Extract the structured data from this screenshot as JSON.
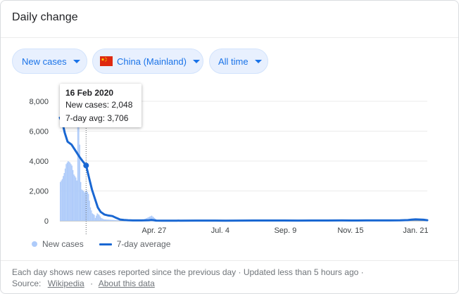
{
  "card": {
    "title": "Daily change"
  },
  "filters": {
    "metric": "New cases",
    "region": "China (Mainland)",
    "region_flag": "china-flag-icon",
    "period": "All time"
  },
  "tooltip": {
    "date": "16 Feb 2020",
    "new_cases": "New cases: 2,048",
    "avg": "7-day avg: 3,706"
  },
  "legend": {
    "bars": "New cases",
    "line": "7-day average"
  },
  "footer": {
    "note": "Each day shows new cases reported since the previous day · Updated less than 5 hours ago ·",
    "source_label": "Source:",
    "source_link": "Wikipedia",
    "about_link": "About this data"
  },
  "colors": {
    "accent": "#1a73e8",
    "line": "#1967d2",
    "bars": "#aecbfa",
    "chip_bg": "#e8f0fe"
  },
  "chart_data": {
    "type": "line",
    "ylim": [
      0,
      8000
    ],
    "y_ticks": [
      0,
      2000,
      4000,
      6000,
      8000
    ],
    "y_tick_labels": [
      "0",
      "2,000",
      "4,000",
      "6,000",
      "8,000"
    ],
    "x_tick_labels": [
      "Apr. 27",
      "Jul. 4",
      "Sep. 9",
      "Nov. 15",
      "Jan. 21"
    ],
    "x_tick_day_index": [
      97,
      165,
      232,
      299,
      366
    ],
    "day_count": 378,
    "grid": true,
    "legend_position": "bottom-left",
    "highlight": {
      "day_index": 27,
      "date": "16 Feb 2020",
      "new_cases": 2048,
      "avg": 3706
    },
    "series": [
      {
        "name": "7-day average",
        "kind": "line",
        "points": [
          [
            0,
            6900
          ],
          [
            3,
            6500
          ],
          [
            5,
            5900
          ],
          [
            8,
            5300
          ],
          [
            12,
            5100
          ],
          [
            16,
            4700
          ],
          [
            20,
            4300
          ],
          [
            24,
            3950
          ],
          [
            27,
            3706
          ],
          [
            30,
            2900
          ],
          [
            33,
            2100
          ],
          [
            36,
            1500
          ],
          [
            39,
            900
          ],
          [
            42,
            600
          ],
          [
            46,
            420
          ],
          [
            50,
            360
          ],
          [
            54,
            320
          ],
          [
            58,
            200
          ],
          [
            62,
            90
          ],
          [
            66,
            60
          ],
          [
            70,
            40
          ],
          [
            75,
            30
          ],
          [
            80,
            28
          ],
          [
            84,
            30
          ],
          [
            88,
            35
          ],
          [
            92,
            40
          ],
          [
            94,
            60
          ],
          [
            96,
            45
          ],
          [
            99,
            20
          ],
          [
            105,
            15
          ],
          [
            120,
            12
          ],
          [
            140,
            18
          ],
          [
            160,
            20
          ],
          [
            170,
            15
          ],
          [
            185,
            20
          ],
          [
            200,
            22
          ],
          [
            215,
            25
          ],
          [
            230,
            24
          ],
          [
            245,
            20
          ],
          [
            260,
            22
          ],
          [
            275,
            24
          ],
          [
            290,
            28
          ],
          [
            300,
            25
          ],
          [
            315,
            27
          ],
          [
            330,
            26
          ],
          [
            340,
            30
          ],
          [
            350,
            35
          ],
          [
            358,
            50
          ],
          [
            362,
            80
          ],
          [
            366,
            100
          ],
          [
            370,
            90
          ],
          [
            374,
            75
          ],
          [
            378,
            40
          ]
        ]
      },
      {
        "name": "New cases",
        "kind": "bars",
        "points": [
          [
            0,
            2600
          ],
          [
            2,
            2800
          ],
          [
            4,
            3200
          ],
          [
            6,
            3800
          ],
          [
            8,
            4000
          ],
          [
            10,
            3900
          ],
          [
            12,
            3700
          ],
          [
            14,
            3100
          ],
          [
            16,
            2900
          ],
          [
            17,
            2700
          ],
          [
            18,
            7600
          ],
          [
            20,
            5100
          ],
          [
            21,
            2600
          ],
          [
            22,
            2100
          ],
          [
            24,
            2000
          ],
          [
            25,
            1900
          ],
          [
            27,
            2048
          ],
          [
            29,
            1800
          ],
          [
            31,
            900
          ],
          [
            33,
            500
          ],
          [
            35,
            400
          ],
          [
            36,
            200
          ],
          [
            38,
            500
          ],
          [
            40,
            400
          ],
          [
            42,
            200
          ],
          [
            45,
            100
          ],
          [
            50,
            80
          ],
          [
            55,
            60
          ],
          [
            60,
            40
          ],
          [
            70,
            40
          ],
          [
            80,
            50
          ],
          [
            85,
            60
          ],
          [
            94,
            350
          ],
          [
            100,
            30
          ]
        ]
      }
    ]
  }
}
